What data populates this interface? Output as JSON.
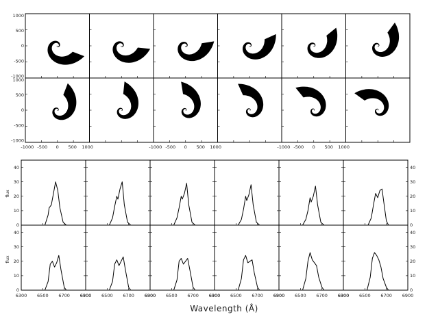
{
  "chart_data": [
    {
      "type": "image-grid",
      "rows": 2,
      "cols": 6,
      "y_ticks": [
        "1000",
        "500",
        "0",
        "-500",
        "-1000"
      ],
      "x_tick_groups": [
        [
          "-1000",
          "-500",
          "0",
          "500",
          "1000"
        ],
        [
          "-1000",
          "-500",
          "0",
          "500",
          "1000"
        ],
        [
          "-1000",
          "-500",
          "0",
          "500",
          "1000"
        ]
      ],
      "panels": [
        {
          "row": 0,
          "col": 0,
          "rotation": 0
        },
        {
          "row": 0,
          "col": 1,
          "rotation": 15
        },
        {
          "row": 0,
          "col": 2,
          "rotation": 30
        },
        {
          "row": 0,
          "col": 3,
          "rotation": 45
        },
        {
          "row": 0,
          "col": 4,
          "rotation": 60
        },
        {
          "row": 0,
          "col": 5,
          "rotation": 75
        },
        {
          "row": 1,
          "col": 0,
          "rotation": 90
        },
        {
          "row": 1,
          "col": 1,
          "rotation": 105
        },
        {
          "row": 1,
          "col": 2,
          "rotation": 120
        },
        {
          "row": 1,
          "col": 3,
          "rotation": 135
        },
        {
          "row": 1,
          "col": 4,
          "rotation": 150
        },
        {
          "row": 1,
          "col": 5,
          "rotation": 165
        }
      ]
    },
    {
      "type": "line",
      "rows": 2,
      "cols": 6,
      "xlabel": "Wavelength (Å)",
      "ylabel": "flux",
      "xlim": [
        6300,
        6900
      ],
      "ylim": [
        0,
        45
      ],
      "x_ticks": [
        "6300",
        "6500",
        "6700",
        "6900"
      ],
      "y_ticks": [
        "40",
        "30",
        "20",
        "10",
        "0"
      ],
      "panels": [
        {
          "row": 0,
          "col": 0,
          "x": [
            6300,
            6520,
            6550,
            6560,
            6580,
            6600,
            6620,
            6640,
            6660,
            6690,
            6720,
            6900
          ],
          "y": [
            0,
            0,
            7,
            12,
            14,
            22,
            30,
            24,
            12,
            2,
            0,
            0
          ]
        },
        {
          "row": 0,
          "col": 1,
          "x": [
            6300,
            6520,
            6550,
            6570,
            6590,
            6600,
            6620,
            6640,
            6660,
            6690,
            6720,
            6900
          ],
          "y": [
            0,
            0,
            5,
            13,
            20,
            18,
            25,
            30,
            14,
            2,
            0,
            0
          ]
        },
        {
          "row": 0,
          "col": 2,
          "x": [
            6300,
            6520,
            6550,
            6570,
            6590,
            6600,
            6620,
            6640,
            6660,
            6690,
            6720,
            6900
          ],
          "y": [
            0,
            0,
            5,
            12,
            20,
            18,
            22,
            29,
            14,
            2,
            0,
            0
          ]
        },
        {
          "row": 0,
          "col": 3,
          "x": [
            6300,
            6520,
            6550,
            6570,
            6590,
            6600,
            6620,
            6640,
            6660,
            6690,
            6720,
            6900
          ],
          "y": [
            0,
            0,
            4,
            11,
            20,
            17,
            21,
            28,
            14,
            2,
            0,
            0
          ]
        },
        {
          "row": 0,
          "col": 4,
          "x": [
            6300,
            6520,
            6550,
            6570,
            6590,
            6600,
            6620,
            6640,
            6660,
            6690,
            6720,
            6900
          ],
          "y": [
            0,
            0,
            4,
            10,
            19,
            16,
            20,
            27,
            14,
            2,
            0,
            0
          ]
        },
        {
          "row": 0,
          "col": 5,
          "x": [
            6300,
            6530,
            6560,
            6580,
            6600,
            6620,
            6640,
            6660,
            6680,
            6700,
            6720,
            6900
          ],
          "y": [
            0,
            0,
            5,
            14,
            22,
            19,
            24,
            25,
            14,
            3,
            0,
            0
          ]
        },
        {
          "row": 1,
          "col": 0,
          "x": [
            6300,
            6520,
            6550,
            6570,
            6590,
            6610,
            6630,
            6650,
            6670,
            6700,
            6720,
            6900
          ],
          "y": [
            0,
            0,
            6,
            18,
            20,
            16,
            19,
            24,
            14,
            2,
            0,
            0
          ]
        },
        {
          "row": 1,
          "col": 1,
          "x": [
            6300,
            6520,
            6550,
            6570,
            6590,
            6610,
            6630,
            6650,
            6670,
            6700,
            6720,
            6900
          ],
          "y": [
            0,
            0,
            6,
            18,
            21,
            17,
            20,
            23,
            14,
            2,
            0,
            0
          ]
        },
        {
          "row": 1,
          "col": 2,
          "x": [
            6300,
            6520,
            6550,
            6570,
            6590,
            6610,
            6630,
            6650,
            6670,
            6700,
            6720,
            6900
          ],
          "y": [
            0,
            0,
            7,
            20,
            22,
            18,
            20,
            22,
            14,
            2,
            0,
            0
          ]
        },
        {
          "row": 1,
          "col": 3,
          "x": [
            6300,
            6520,
            6550,
            6570,
            6590,
            6610,
            6630,
            6650,
            6670,
            6700,
            6720,
            6900
          ],
          "y": [
            0,
            0,
            8,
            21,
            24,
            19,
            20,
            21,
            12,
            2,
            0,
            0
          ]
        },
        {
          "row": 1,
          "col": 4,
          "x": [
            6300,
            6520,
            6550,
            6570,
            6590,
            6610,
            6630,
            6650,
            6670,
            6700,
            6720,
            6900
          ],
          "y": [
            0,
            0,
            8,
            20,
            26,
            21,
            19,
            17,
            9,
            2,
            0,
            0
          ]
        },
        {
          "row": 1,
          "col": 5,
          "x": [
            6300,
            6520,
            6550,
            6570,
            6590,
            6610,
            6630,
            6650,
            6670,
            6700,
            6720,
            6900
          ],
          "y": [
            0,
            0,
            9,
            22,
            26,
            24,
            21,
            16,
            8,
            2,
            0,
            0
          ]
        }
      ]
    }
  ]
}
